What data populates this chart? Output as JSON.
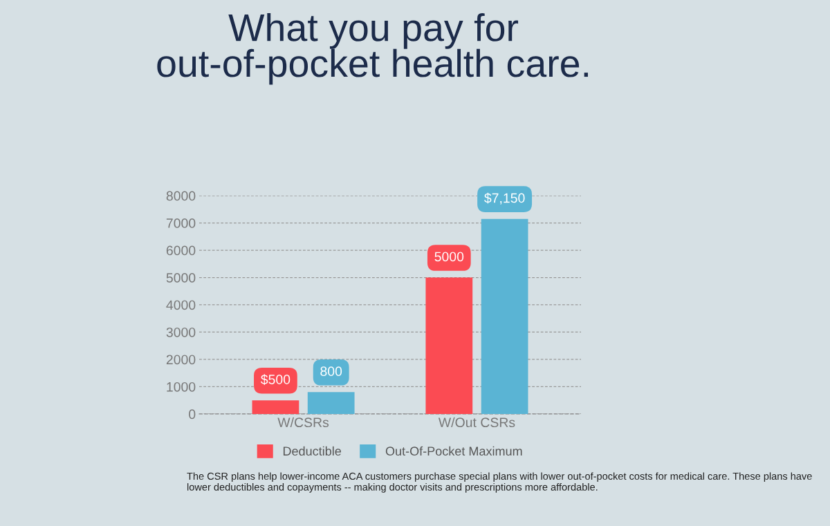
{
  "chart_data": {
    "type": "bar",
    "title": "What you pay for\nout-of-pocket health care.",
    "categories": [
      "W/CSRs",
      "W/Out CSRs"
    ],
    "series": [
      {
        "name": "Deductible",
        "color": "#fb4b53",
        "values": [
          500,
          5000
        ],
        "value_labels": [
          "$500",
          "5000"
        ]
      },
      {
        "name": "Out-Of-Pocket Maximum",
        "color": "#5ab4d4",
        "values": [
          800,
          7150
        ],
        "value_labels": [
          "800",
          "$7,150"
        ]
      }
    ],
    "ylim": [
      0,
      8000
    ],
    "yticks": [
      0,
      1000,
      2000,
      3000,
      4000,
      5000,
      6000,
      7000,
      8000
    ],
    "grid": "y",
    "legend": "bottom",
    "annotations": [
      "The CSR plans help lower-income ACA customers purchase special plans with lower out-of-pocket costs for medical care. These plans have lower deductibles and copayments -- making doctor visits and prescriptions more affordable."
    ]
  }
}
